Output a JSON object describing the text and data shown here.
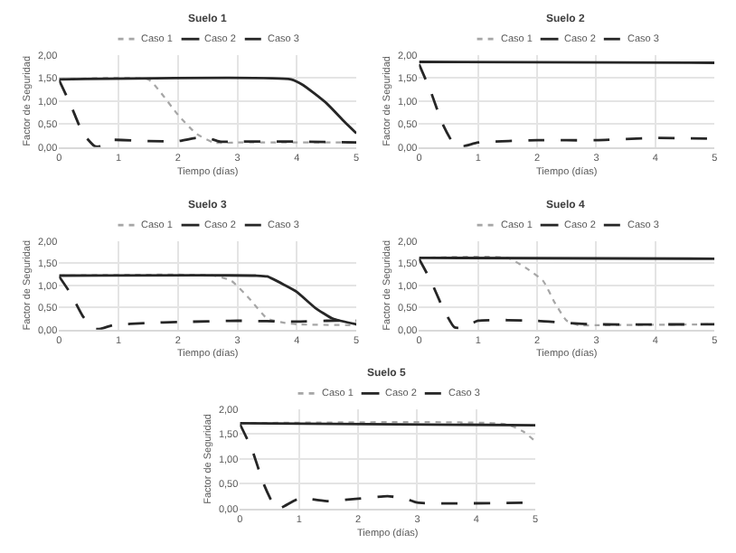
{
  "chart_data": [
    {
      "type": "line",
      "title": "Suelo 1",
      "xlabel": "Tiempo (días)",
      "ylabel": "Factor de Seguridad",
      "xlim": [
        0,
        5
      ],
      "ylim": [
        0,
        2
      ],
      "xticks": [
        0,
        1,
        2,
        3,
        4,
        5
      ],
      "yticks": [
        {
          "value": 0,
          "label": "0,00"
        },
        {
          "value": 0.5,
          "label": "0,50"
        },
        {
          "value": 1,
          "label": "1,00"
        },
        {
          "value": 1.5,
          "label": "1,50"
        },
        {
          "value": 2,
          "label": "2,00"
        }
      ],
      "grid": true,
      "legend": "top",
      "series": [
        {
          "name": "Caso 1",
          "color": "#a6a6a6",
          "line_style": "dotted",
          "x": [
            0,
            1.5,
            1.7,
            2,
            2.3,
            2.6,
            3,
            5
          ],
          "values": [
            1.47,
            1.47,
            1.2,
            0.7,
            0.3,
            0.1,
            0.1,
            0.1
          ]
        },
        {
          "name": "Caso 2",
          "color": "#262626",
          "line_style": "solid",
          "x": [
            0,
            3.9,
            4.1,
            4.5,
            4.8,
            5
          ],
          "values": [
            1.47,
            1.47,
            1.35,
            0.95,
            0.55,
            0.3
          ]
        },
        {
          "name": "Caso 3",
          "color": "#262626",
          "line_style": "dashed",
          "x": [
            0,
            0.2,
            0.4,
            0.6,
            0.7,
            0.85,
            1.5,
            2,
            2.3,
            2.5,
            2.7,
            3,
            4,
            5
          ],
          "values": [
            1.45,
            0.9,
            0.3,
            0.02,
            0.02,
            0.15,
            0.13,
            0.13,
            0.2,
            0.2,
            0.12,
            0.12,
            0.12,
            0.1
          ]
        }
      ]
    },
    {
      "type": "line",
      "title": "Suelo 2",
      "xlabel": "Tiempo (días)",
      "ylabel": "Factor de Seguridad",
      "xlim": [
        0,
        5
      ],
      "ylim": [
        0,
        2
      ],
      "xticks": [
        0,
        1,
        2,
        3,
        4,
        5
      ],
      "yticks": [
        {
          "value": 0,
          "label": "0,00"
        },
        {
          "value": 0.5,
          "label": "0,50"
        },
        {
          "value": 1,
          "label": "1,00"
        },
        {
          "value": 1.5,
          "label": "1,50"
        },
        {
          "value": 2,
          "label": "2,00"
        }
      ],
      "grid": true,
      "legend": "top",
      "series": [
        {
          "name": "Caso 1",
          "color": "#a6a6a6",
          "line_style": "dotted"
        },
        {
          "name": "Caso 2",
          "color": "#262626",
          "line_style": "solid",
          "x": [
            0,
            5
          ],
          "values": [
            1.85,
            1.83
          ]
        },
        {
          "name": "Caso 3",
          "color": "#262626",
          "line_style": "dashed",
          "x": [
            0,
            0.2,
            0.4,
            0.6,
            0.75,
            1,
            2,
            3,
            4,
            5
          ],
          "values": [
            1.8,
            1.2,
            0.5,
            0.05,
            0.02,
            0.1,
            0.15,
            0.15,
            0.2,
            0.18
          ]
        }
      ]
    },
    {
      "type": "line",
      "title": "Suelo 3",
      "xlabel": "Tiempo (días)",
      "ylabel": "Factor de Seguridad",
      "xlim": [
        0,
        5
      ],
      "ylim": [
        0,
        2
      ],
      "xticks": [
        0,
        1,
        2,
        3,
        4,
        5
      ],
      "yticks": [
        {
          "value": 0,
          "label": "0,00"
        },
        {
          "value": 0.5,
          "label": "0,50"
        },
        {
          "value": 1,
          "label": "1,00"
        },
        {
          "value": 1.5,
          "label": "1,50"
        },
        {
          "value": 2,
          "label": "2,00"
        }
      ],
      "grid": true,
      "legend": "top",
      "series": [
        {
          "name": "Caso 1",
          "color": "#a6a6a6",
          "line_style": "dotted",
          "x": [
            0,
            2.6,
            2.9,
            3.2,
            3.5,
            3.8,
            4,
            5
          ],
          "values": [
            1.22,
            1.22,
            1.1,
            0.7,
            0.25,
            0.15,
            0.12,
            0.1
          ]
        },
        {
          "name": "Caso 2",
          "color": "#262626",
          "line_style": "solid",
          "x": [
            0,
            3.3,
            3.5,
            3.8,
            4,
            4.3,
            4.6,
            5
          ],
          "values": [
            1.22,
            1.22,
            1.2,
            1.0,
            0.85,
            0.5,
            0.25,
            0.12
          ]
        },
        {
          "name": "Caso 3",
          "color": "#262626",
          "line_style": "dashed",
          "x": [
            0,
            0.2,
            0.4,
            0.6,
            0.7,
            0.9,
            1.5,
            2,
            3,
            4,
            4.5,
            5
          ],
          "values": [
            1.2,
            0.8,
            0.3,
            0.02,
            0.02,
            0.1,
            0.15,
            0.17,
            0.2,
            0.18,
            0.2,
            0.2
          ]
        }
      ]
    },
    {
      "type": "line",
      "title": "Suelo 4",
      "xlabel": "Tiempo (días)",
      "ylabel": "Factor de Seguridad",
      "xlim": [
        0,
        5
      ],
      "ylim": [
        0,
        2
      ],
      "xticks": [
        0,
        1,
        2,
        3,
        4,
        5
      ],
      "yticks": [
        {
          "value": 0,
          "label": "0,00"
        },
        {
          "value": 0.5,
          "label": "0,50"
        },
        {
          "value": 1,
          "label": "1,00"
        },
        {
          "value": 1.5,
          "label": "1,50"
        },
        {
          "value": 2,
          "label": "2,00"
        }
      ],
      "grid": true,
      "legend": "top",
      "series": [
        {
          "name": "Caso 1",
          "color": "#a6a6a6",
          "line_style": "dotted",
          "x": [
            0,
            1.5,
            1.8,
            2.1,
            2.3,
            2.5,
            2.7,
            3,
            5
          ],
          "values": [
            1.62,
            1.62,
            1.4,
            1.1,
            0.6,
            0.2,
            0.1,
            0.1,
            0.12
          ]
        },
        {
          "name": "Caso 2",
          "color": "#262626",
          "line_style": "solid",
          "x": [
            0,
            5
          ],
          "values": [
            1.62,
            1.6
          ]
        },
        {
          "name": "Caso 3",
          "color": "#262626",
          "line_style": "dashed",
          "x": [
            0,
            0.2,
            0.4,
            0.6,
            0.75,
            1,
            2,
            2.5,
            3,
            5
          ],
          "values": [
            1.6,
            1.1,
            0.5,
            0.05,
            0.05,
            0.2,
            0.2,
            0.15,
            0.12,
            0.12
          ]
        }
      ]
    },
    {
      "type": "line",
      "title": "Suelo 5",
      "xlabel": "Tiempo (días)",
      "ylabel": "Factor de Seguridad",
      "xlim": [
        0,
        5
      ],
      "ylim": [
        0,
        2
      ],
      "xticks": [
        0,
        1,
        2,
        3,
        4,
        5
      ],
      "yticks": [
        {
          "value": 0,
          "label": "0,00"
        },
        {
          "value": 0.5,
          "label": "0,50"
        },
        {
          "value": 1,
          "label": "1,00"
        },
        {
          "value": 1.5,
          "label": "1,50"
        },
        {
          "value": 2,
          "label": "2,00"
        }
      ],
      "grid": true,
      "legend": "top",
      "series": [
        {
          "name": "Caso 1",
          "color": "#a6a6a6",
          "line_style": "dotted",
          "x": [
            0,
            4.5,
            4.8,
            5
          ],
          "values": [
            1.72,
            1.7,
            1.55,
            1.35
          ]
        },
        {
          "name": "Caso 2",
          "color": "#262626",
          "line_style": "solid",
          "x": [
            0,
            5
          ],
          "values": [
            1.72,
            1.68
          ]
        },
        {
          "name": "Caso 3",
          "color": "#262626",
          "line_style": "dashed",
          "x": [
            0,
            0.2,
            0.4,
            0.6,
            0.7,
            1,
            1.5,
            2,
            2.5,
            2.8,
            3,
            5
          ],
          "values": [
            1.7,
            1.2,
            0.5,
            0.02,
            0.02,
            0.2,
            0.15,
            0.2,
            0.25,
            0.2,
            0.12,
            0.12
          ]
        }
      ]
    }
  ]
}
